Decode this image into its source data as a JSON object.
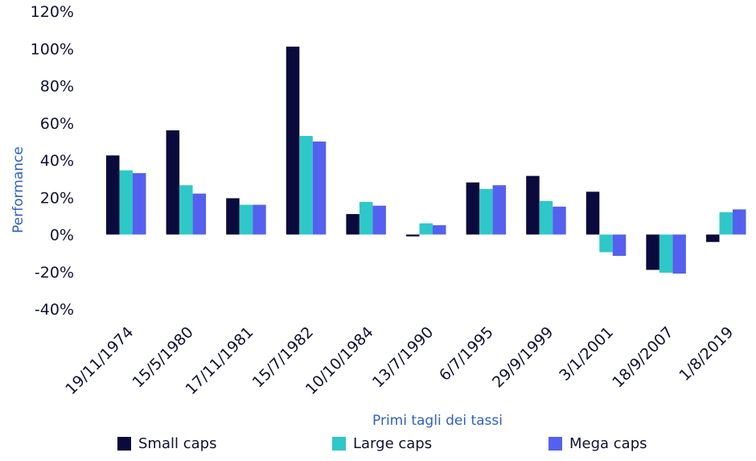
{
  "chart_data": {
    "type": "bar",
    "xlabel": "Primi tagli dei tassi",
    "ylabel": "Performance",
    "ylim": [
      -40,
      120
    ],
    "yticks": [
      120,
      100,
      80,
      60,
      40,
      20,
      0,
      -20,
      -40
    ],
    "ytick_labels": [
      "120%",
      "100%",
      "80%",
      "60%",
      "40%",
      "20%",
      "0%",
      "-20%",
      "-40%"
    ],
    "categories": [
      "19/11/1974",
      "15/5/1980",
      "17/11/1981",
      "15/7/1982",
      "10/10/1984",
      "13/7/1990",
      "6/7/1995",
      "29/9/1999",
      "3/1/2001",
      "18/9/2007",
      "1/8/2019"
    ],
    "series": [
      {
        "name": "Small caps",
        "color": "#0a0a3c",
        "values": [
          42.5,
          56,
          19.5,
          101,
          11,
          -1,
          28,
          31.5,
          23,
          -19,
          -4
        ]
      },
      {
        "name": "Large caps",
        "color": "#2ec8c8",
        "values": [
          34.5,
          26.5,
          16,
          53,
          17.5,
          6,
          24.5,
          18,
          -9.5,
          -20.5,
          12
        ]
      },
      {
        "name": "Mega caps",
        "color": "#5560ee",
        "values": [
          33,
          22,
          16,
          50,
          15.5,
          5,
          26.5,
          15,
          -11.5,
          -21,
          13.5
        ]
      }
    ],
    "grid": false,
    "legend": "bottom"
  }
}
